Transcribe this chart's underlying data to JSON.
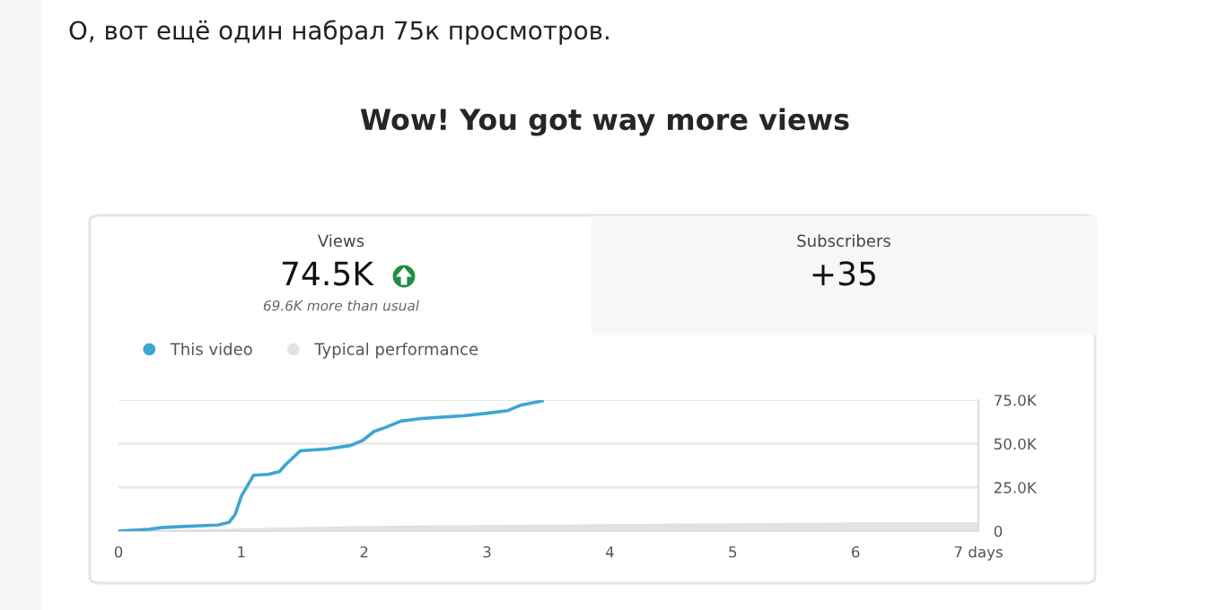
{
  "chart_data": {
    "type": "line",
    "title": "Wow! You got way more views",
    "annotations": [
      "О, вот ещё один набрал 75к просмотров.",
      "Views",
      "74.5K",
      "69.6K more than usual",
      "Subscribers",
      "+35"
    ],
    "series": [
      {
        "name": "This video",
        "color": "#3ea6d3",
        "x": [
          0,
          0.25,
          0.35,
          0.49,
          0.81,
          0.9,
          0.95,
          1.0,
          1.1,
          1.22,
          1.31,
          1.36,
          1.48,
          1.7,
          1.89,
          1.99,
          2.08,
          2.18,
          2.3,
          2.47,
          2.81,
          3.0,
          3.17,
          3.27,
          3.45
        ],
        "values": [
          0,
          1000,
          2000,
          2500,
          3500,
          5000,
          9500,
          20000,
          32000,
          32500,
          34000,
          38000,
          46000,
          47000,
          49000,
          52000,
          57000,
          59500,
          63000,
          64500,
          66000,
          67500,
          69000,
          72000,
          74500
        ]
      },
      {
        "name": "Typical performance",
        "color": "#e2e2e2",
        "type": "area",
        "x": [
          0,
          1,
          2,
          3,
          4,
          5,
          6,
          7
        ],
        "values": [
          0,
          1500,
          3000,
          3500,
          4000,
          4500,
          5000,
          5000
        ]
      }
    ],
    "xlim": [
      0,
      7
    ],
    "xticks": [
      0,
      1,
      2,
      3,
      4,
      5,
      6,
      {
        "value": 7,
        "label": "7 days"
      }
    ],
    "ylim": [
      0,
      75000
    ],
    "yticks": [
      {
        "value": 0,
        "label": "0"
      },
      {
        "value": 25000,
        "label": "25.0K"
      },
      {
        "value": 50000,
        "label": "50.0K"
      },
      {
        "value": 75000,
        "label": "75.0K"
      }
    ],
    "grid": "y",
    "legend": "top left"
  }
}
